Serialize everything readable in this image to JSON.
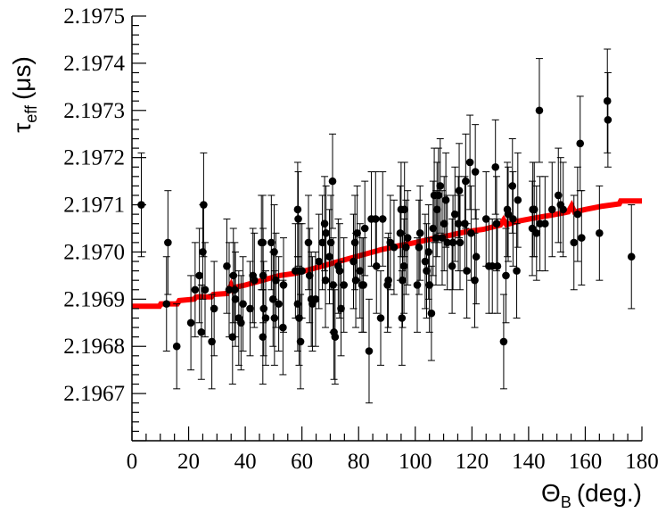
{
  "chart_data": {
    "type": "scatter",
    "title": "",
    "xlabel": "Θ",
    "xlabel_subscript": "B",
    "xlabel_unit": "(deg.)",
    "ylabel": "τ",
    "ylabel_subscript": "eff",
    "ylabel_unit": "(μs)",
    "xlim": [
      0,
      180
    ],
    "ylim": [
      2.1966,
      2.1975
    ],
    "x_ticks": [
      {
        "value": 0,
        "label": "0"
      },
      {
        "value": 20,
        "label": "20"
      },
      {
        "value": 40,
        "label": "40"
      },
      {
        "value": 60,
        "label": "60"
      },
      {
        "value": 80,
        "label": "80"
      },
      {
        "value": 100,
        "label": "100"
      },
      {
        "value": 120,
        "label": "120"
      },
      {
        "value": 140,
        "label": "140"
      },
      {
        "value": 160,
        "label": "160"
      },
      {
        "value": 180,
        "label": "180"
      }
    ],
    "y_ticks": [
      {
        "value": 2.1967,
        "label": "2.1967"
      },
      {
        "value": 2.1968,
        "label": "2.1968"
      },
      {
        "value": 2.1969,
        "label": "2.1969"
      },
      {
        "value": 2.197,
        "label": "2.1970"
      },
      {
        "value": 2.1971,
        "label": "2.1971"
      },
      {
        "value": 2.1972,
        "label": "2.1972"
      },
      {
        "value": 2.1973,
        "label": "2.1973"
      },
      {
        "value": 2.1974,
        "label": "2.1974"
      },
      {
        "value": 2.1975,
        "label": "2.1975"
      }
    ],
    "grid": false,
    "legend": "none",
    "colors": {
      "points": "#000000",
      "fit": "#ff0000",
      "axes": "#000000"
    },
    "series": [
      {
        "type": "scatter-errorbars",
        "points": [
          [
            3.3,
            2.1971,
            0.00011
          ],
          [
            12.7,
            2.19702,
            0.00011
          ],
          [
            12.2,
            2.19689,
            0.0001
          ],
          [
            15.8,
            2.1968,
            9e-05
          ],
          [
            20.8,
            2.19685,
            0.0001
          ],
          [
            22.3,
            2.19692,
            0.0001
          ],
          [
            23.8,
            2.19695,
            0.0001
          ],
          [
            25.3,
            2.1971,
            0.00011
          ],
          [
            25.0,
            2.197,
            0.0001
          ],
          [
            25.8,
            2.19692,
            0.0001
          ],
          [
            24.5,
            2.19683,
            0.0001
          ],
          [
            28.2,
            2.19681,
            0.0001
          ],
          [
            29.0,
            2.19688,
            0.0001
          ],
          [
            33.5,
            2.19697,
            0.0001
          ],
          [
            34.3,
            2.19692,
            0.0001
          ],
          [
            35.8,
            2.19695,
            0.0001
          ],
          [
            36.3,
            2.19692,
            0.0001
          ],
          [
            36.5,
            2.1969,
            0.0001
          ],
          [
            35.5,
            2.19682,
            0.0001
          ],
          [
            37.7,
            2.19686,
            0.0001
          ],
          [
            38.5,
            2.19685,
            0.0001
          ],
          [
            39.2,
            2.19689,
            0.0001
          ],
          [
            41.7,
            2.19688,
            0.0001
          ],
          [
            42.7,
            2.19695,
            0.0001
          ],
          [
            43.2,
            2.19694,
            0.0001
          ],
          [
            45.7,
            2.19702,
            0.0001
          ],
          [
            46.2,
            2.19702,
            0.0001
          ],
          [
            46.3,
            2.19695,
            0.0001
          ],
          [
            46.5,
            2.19688,
            0.0001
          ],
          [
            46.2,
            2.19682,
            0.0001
          ],
          [
            47.2,
            2.19686,
            0.0001
          ],
          [
            49.2,
            2.19702,
            0.0001
          ],
          [
            50.2,
            2.197,
            0.0001
          ],
          [
            49.8,
            2.1969,
            0.0001
          ],
          [
            50.8,
            2.19694,
            0.0001
          ],
          [
            50.3,
            2.19686,
            0.0001
          ],
          [
            51.8,
            2.19689,
            0.0001
          ],
          [
            53.3,
            2.19684,
            0.0001
          ],
          [
            53.5,
            2.19693,
            0.0001
          ],
          [
            57.7,
            2.19696,
            0.0001
          ],
          [
            58.5,
            2.19709,
            0.0001
          ],
          [
            58.7,
            2.19707,
            0.0001
          ],
          [
            58.5,
            2.19689,
            0.0001
          ],
          [
            59.0,
            2.19686,
            0.0001
          ],
          [
            59.3,
            2.19696,
            0.0001
          ],
          [
            59.5,
            2.19681,
            0.0001
          ],
          [
            60.0,
            2.19696,
            0.0001
          ],
          [
            62.3,
            2.19702,
            0.0001
          ],
          [
            62.7,
            2.19695,
            0.0001
          ],
          [
            63.3,
            2.1969,
            0.0001
          ],
          [
            63.7,
            2.19689,
            0.0001
          ],
          [
            64.8,
            2.1969,
            0.0001
          ],
          [
            66.0,
            2.19698,
            0.0001
          ],
          [
            67.2,
            2.19702,
            0.0001
          ],
          [
            68.0,
            2.19706,
            0.0001
          ],
          [
            68.5,
            2.19704,
            0.0001
          ],
          [
            68.3,
            2.19694,
            0.0001
          ],
          [
            69.7,
            2.19699,
            0.0001
          ],
          [
            70.2,
            2.19702,
            0.0001
          ],
          [
            70.8,
            2.19715,
            0.0001
          ],
          [
            71.0,
            2.19693,
            0.0001
          ],
          [
            71.3,
            2.19683,
            0.0001
          ],
          [
            71.7,
            2.19682,
            0.0001
          ],
          [
            72.8,
            2.19697,
            0.0001
          ],
          [
            73.3,
            2.19696,
            0.0001
          ],
          [
            73.8,
            2.19688,
            0.0001
          ],
          [
            74.8,
            2.19693,
            0.0001
          ],
          [
            78.2,
            2.19698,
            0.0001
          ],
          [
            78.7,
            2.19702,
            0.0001
          ],
          [
            79.0,
            2.19694,
            0.0001
          ],
          [
            79.5,
            2.19704,
            0.0001
          ],
          [
            80.5,
            2.19696,
            0.0001
          ],
          [
            81.2,
            2.19693,
            0.0001
          ],
          [
            81.7,
            2.19693,
            0.0001
          ],
          [
            82.2,
            2.19705,
            0.0001
          ],
          [
            83.7,
            2.19679,
            0.00011
          ],
          [
            84.5,
            2.19707,
            0.0001
          ],
          [
            86.0,
            2.19707,
            0.0001
          ],
          [
            86.3,
            2.19697,
            0.0001
          ],
          [
            87.8,
            2.19686,
            0.0001
          ],
          [
            88.5,
            2.19707,
            0.0001
          ],
          [
            90.2,
            2.19693,
            0.0001
          ],
          [
            90.5,
            2.19694,
            0.0001
          ],
          [
            91.2,
            2.19702,
            0.0001
          ],
          [
            92.5,
            2.19701,
            0.0001
          ],
          [
            94.7,
            2.19704,
            0.0001
          ],
          [
            95.0,
            2.19709,
            0.0001
          ],
          [
            95.3,
            2.19686,
            0.0001
          ],
          [
            95.5,
            2.19694,
            0.0001
          ],
          [
            96.0,
            2.19697,
            0.0001
          ],
          [
            96.2,
            2.19709,
            0.0001
          ],
          [
            96.7,
            2.19701,
            0.0001
          ],
          [
            97.3,
            2.19703,
            0.0001
          ],
          [
            100.7,
            2.19693,
            0.0001
          ],
          [
            101.3,
            2.19701,
            0.0001
          ],
          [
            101.7,
            2.19704,
            0.0001
          ],
          [
            103.5,
            2.19698,
            0.0001
          ],
          [
            104.0,
            2.19696,
            0.0001
          ],
          [
            104.7,
            2.197,
            0.0001
          ],
          [
            105.0,
            2.19693,
            0.0001
          ],
          [
            105.7,
            2.19687,
            0.0001
          ],
          [
            106.3,
            2.19705,
            0.0001
          ],
          [
            106.7,
            2.19712,
            0.0001
          ],
          [
            107.3,
            2.19703,
            0.0001
          ],
          [
            107.7,
            2.19709,
            0.0001
          ],
          [
            108.2,
            2.19712,
            0.0001
          ],
          [
            108.8,
            2.19714,
            0.0001
          ],
          [
            109.5,
            2.19703,
            0.0001
          ],
          [
            110.2,
            2.19706,
            0.0001
          ],
          [
            110.8,
            2.19711,
            0.0001
          ],
          [
            111.3,
            2.19702,
            0.0001
          ],
          [
            113.0,
            2.19697,
            0.0001
          ],
          [
            113.3,
            2.19702,
            0.0001
          ],
          [
            114.0,
            2.19708,
            0.0001
          ],
          [
            115.2,
            2.19706,
            0.0001
          ],
          [
            115.5,
            2.19713,
            0.0001
          ],
          [
            115.8,
            2.19702,
            0.0001
          ],
          [
            117.5,
            2.19706,
            0.0001
          ],
          [
            117.8,
            2.19715,
            0.0001
          ],
          [
            118.2,
            2.19696,
            0.0001
          ],
          [
            119.3,
            2.19719,
            0.0001
          ],
          [
            119.7,
            2.19704,
            0.0001
          ],
          [
            121.2,
            2.19717,
            0.0001
          ],
          [
            121.0,
            2.19694,
            0.0001
          ],
          [
            121.5,
            2.19699,
            0.0001
          ],
          [
            125.0,
            2.19707,
            0.0001
          ],
          [
            126.0,
            2.19697,
            0.0001
          ],
          [
            127.2,
            2.19697,
            0.0001
          ],
          [
            128.3,
            2.19718,
            0.0001
          ],
          [
            128.7,
            2.19706,
            0.0001
          ],
          [
            129.0,
            2.19697,
            0.0001
          ],
          [
            131.2,
            2.19681,
            0.0001
          ],
          [
            132.0,
            2.19695,
            0.0001
          ],
          [
            132.5,
            2.19709,
            0.0001
          ],
          [
            132.8,
            2.19708,
            0.0001
          ],
          [
            134.3,
            2.19714,
            0.0001
          ],
          [
            134.5,
            2.19707,
            0.0001
          ],
          [
            135.8,
            2.19696,
            0.0001
          ],
          [
            136.2,
            2.19711,
            0.0001
          ],
          [
            141.3,
            2.19705,
            0.0001
          ],
          [
            141.5,
            2.19709,
            0.0001
          ],
          [
            142.0,
            2.19709,
            0.0001
          ],
          [
            142.8,
            2.19704,
            0.0001
          ],
          [
            143.8,
            2.1973,
            0.00011
          ],
          [
            144.0,
            2.19706,
            0.0001
          ],
          [
            145.8,
            2.19706,
            0.0001
          ],
          [
            148.3,
            2.19709,
            0.0001
          ],
          [
            150.5,
            2.19712,
            0.0001
          ],
          [
            151.3,
            2.1971,
            0.0001
          ],
          [
            152.2,
            2.19709,
            0.0001
          ],
          [
            156.0,
            2.19702,
            0.0001
          ],
          [
            157.3,
            2.19708,
            0.0001
          ],
          [
            158.2,
            2.19723,
            0.0001
          ],
          [
            158.7,
            2.19703,
            0.0001
          ],
          [
            165.0,
            2.19704,
            0.0001
          ],
          [
            167.8,
            2.19732,
            0.00011
          ],
          [
            168.0,
            2.19728,
            0.0001
          ],
          [
            176.3,
            2.19699,
            0.00011
          ]
        ]
      },
      {
        "type": "fit-line",
        "points": [
          [
            0,
            2.196885
          ],
          [
            9.7,
            2.196885
          ],
          [
            10.2,
            2.19689
          ],
          [
            16.0,
            2.19689
          ],
          [
            16.7,
            2.196897
          ],
          [
            22.0,
            2.1969
          ],
          [
            22.7,
            2.196905
          ],
          [
            28.0,
            2.196905
          ],
          [
            28.7,
            2.19691
          ],
          [
            33.5,
            2.196912
          ],
          [
            34.2,
            2.19692
          ],
          [
            35.0,
            2.19693
          ],
          [
            35.7,
            2.19692
          ],
          [
            36.3,
            2.196925
          ],
          [
            40.0,
            2.19693
          ],
          [
            46.0,
            2.19694
          ],
          [
            52.0,
            2.19695
          ],
          [
            58.0,
            2.196955
          ],
          [
            64.0,
            2.196965
          ],
          [
            70.0,
            2.196975
          ],
          [
            76.0,
            2.196985
          ],
          [
            82.0,
            2.196995
          ],
          [
            88.0,
            2.197005
          ],
          [
            94.0,
            2.197013
          ],
          [
            100.0,
            2.19702
          ],
          [
            106.0,
            2.197028
          ],
          [
            112.0,
            2.197035
          ],
          [
            118.0,
            2.197043
          ],
          [
            124.0,
            2.197048
          ],
          [
            130.0,
            2.197057
          ],
          [
            131.2,
            2.197068
          ],
          [
            132.2,
            2.197058
          ],
          [
            136.0,
            2.197065
          ],
          [
            142.0,
            2.197072
          ],
          [
            148.0,
            2.197078
          ],
          [
            154.0,
            2.197085
          ],
          [
            155.2,
            2.197098
          ],
          [
            156.2,
            2.197085
          ],
          [
            160.0,
            2.19709
          ],
          [
            166.0,
            2.197097
          ],
          [
            172.0,
            2.197102
          ],
          [
            172.5,
            2.197108
          ],
          [
            180.0,
            2.197108
          ]
        ]
      }
    ]
  }
}
